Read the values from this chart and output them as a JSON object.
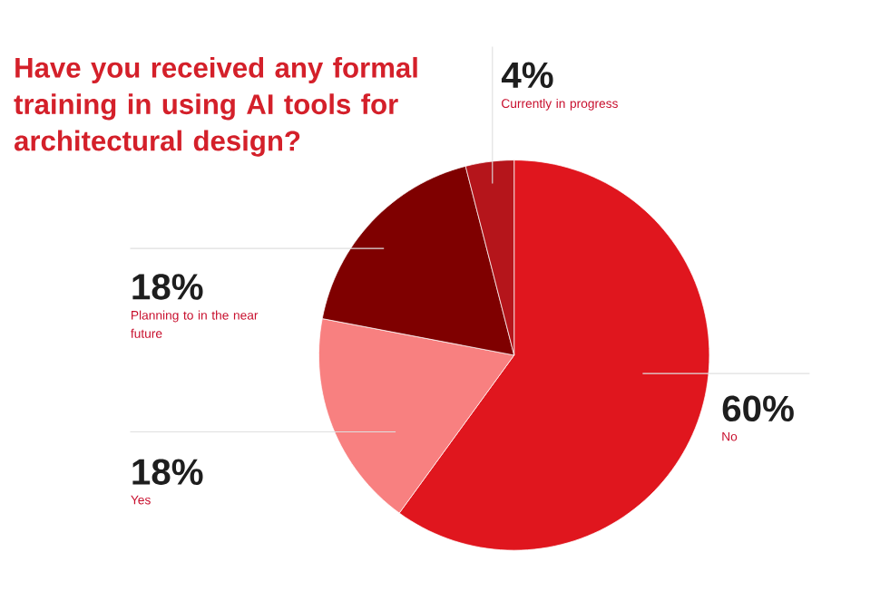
{
  "chart_data": {
    "type": "pie",
    "title": "Have you received any formal training in using AI tools for architectural design?",
    "categories": [
      "No",
      "Yes",
      "Planning to in the near future",
      "Currently in progress"
    ],
    "values": [
      60,
      18,
      18,
      4
    ],
    "colors": [
      "#e0161e",
      "#f88080",
      "#7f0000",
      "#b5151b"
    ],
    "value_labels": [
      "60%",
      "18%",
      "18%",
      "4%"
    ]
  }
}
